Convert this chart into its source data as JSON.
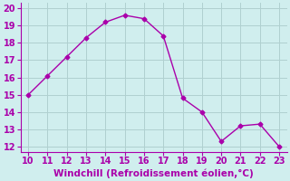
{
  "x": [
    10,
    11,
    12,
    13,
    14,
    15,
    16,
    17,
    18,
    19,
    20,
    21,
    22,
    23
  ],
  "y": [
    15.0,
    16.1,
    17.2,
    18.3,
    19.2,
    19.6,
    19.4,
    18.4,
    14.8,
    14.0,
    12.3,
    13.2,
    13.3,
    12.0
  ],
  "line_color": "#aa00aa",
  "marker": "D",
  "marker_size": 2.5,
  "bg_color": "#d0eeee",
  "grid_color": "#b0d0d0",
  "axis_color": "#aa00aa",
  "xlabel": "Windchill (Refroidissement éolien,°C)",
  "xlabel_color": "#aa00aa",
  "tick_color": "#aa00aa",
  "xlim": [
    9.6,
    23.4
  ],
  "ylim": [
    11.7,
    20.3
  ],
  "xticks": [
    10,
    11,
    12,
    13,
    14,
    15,
    16,
    17,
    18,
    19,
    20,
    21,
    22,
    23
  ],
  "yticks": [
    12,
    13,
    14,
    15,
    16,
    17,
    18,
    19,
    20
  ],
  "fontsize_xlabel": 7.5,
  "fontsize_ticks": 7.0,
  "linewidth": 1.0,
  "spine_color": "#aa00aa"
}
